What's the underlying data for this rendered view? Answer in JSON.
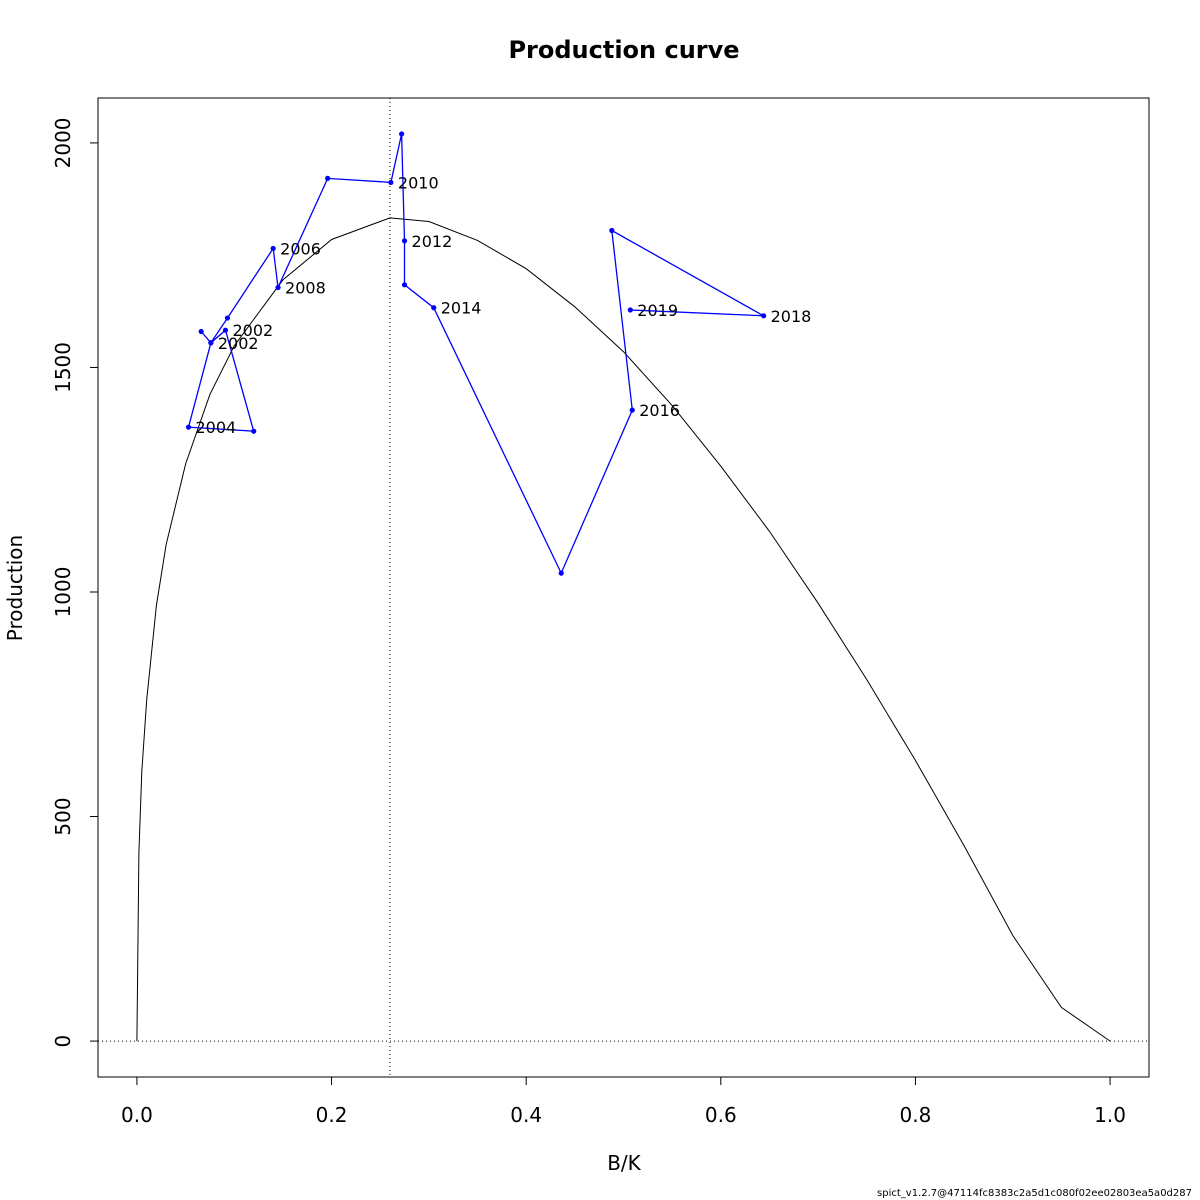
{
  "chart_data": {
    "type": "line",
    "title": "Production curve",
    "xlabel": "B/K",
    "ylabel": "Production",
    "xlim": [
      -0.04,
      1.04
    ],
    "ylim": [
      -80,
      2100
    ],
    "x_ticks": [
      0.0,
      0.2,
      0.4,
      0.6,
      0.8,
      1.0
    ],
    "x_tick_labels": [
      "0.0",
      "0.2",
      "0.4",
      "0.6",
      "0.8",
      "1.0"
    ],
    "y_ticks": [
      0,
      500,
      1000,
      1500,
      2000
    ],
    "y_tick_labels": [
      "0",
      "500",
      "1000",
      "1500",
      "2000"
    ],
    "grid": false,
    "reference_lines": {
      "vertical_x": 0.26,
      "horizontal_y": 0,
      "style": "dotted"
    },
    "curve": {
      "color": "#000000",
      "x": [
        0,
        0.002,
        0.005,
        0.01,
        0.02,
        0.03,
        0.05,
        0.075,
        0.1,
        0.15,
        0.2,
        0.26,
        0.3,
        0.35,
        0.4,
        0.45,
        0.5,
        0.55,
        0.6,
        0.65,
        0.7,
        0.75,
        0.8,
        0.85,
        0.9,
        0.95,
        1.0
      ],
      "y": [
        0,
        420,
        600,
        760,
        970,
        1105,
        1285,
        1440,
        1548,
        1695,
        1785,
        1833,
        1825,
        1783,
        1720,
        1635,
        1535,
        1415,
        1280,
        1135,
        975,
        805,
        625,
        435,
        235,
        75,
        0
      ]
    },
    "series": {
      "color": "#0000ff",
      "points": [
        {
          "x": 0.066,
          "y": 1580,
          "label": ""
        },
        {
          "x": 0.076,
          "y": 1555,
          "label": "2002"
        },
        {
          "x": 0.091,
          "y": 1583,
          "label": "2002"
        },
        {
          "x": 0.12,
          "y": 1358,
          "label": ""
        },
        {
          "x": 0.053,
          "y": 1367,
          "label": "2004"
        },
        {
          "x": 0.076,
          "y": 1555,
          "label": ""
        },
        {
          "x": 0.093,
          "y": 1610,
          "label": ""
        },
        {
          "x": 0.14,
          "y": 1765,
          "label": "2006"
        },
        {
          "x": 0.145,
          "y": 1678,
          "label": "2008"
        },
        {
          "x": 0.196,
          "y": 1921,
          "label": ""
        },
        {
          "x": 0.261,
          "y": 1912,
          "label": "2010"
        },
        {
          "x": 0.272,
          "y": 2020,
          "label": ""
        },
        {
          "x": 0.275,
          "y": 1782,
          "label": "2012"
        },
        {
          "x": 0.275,
          "y": 1684,
          "label": ""
        },
        {
          "x": 0.305,
          "y": 1633,
          "label": "2014"
        },
        {
          "x": 0.436,
          "y": 1042,
          "label": ""
        },
        {
          "x": 0.509,
          "y": 1405,
          "label": "2016"
        },
        {
          "x": 0.488,
          "y": 1805,
          "label": ""
        },
        {
          "x": 0.644,
          "y": 1615,
          "label": "2018"
        },
        {
          "x": 0.507,
          "y": 1628,
          "label": "2019"
        }
      ]
    }
  },
  "footnote": "spict_v1.2.7@47114fc8383c2a5d1c080f02ee02803ea5a0d287"
}
